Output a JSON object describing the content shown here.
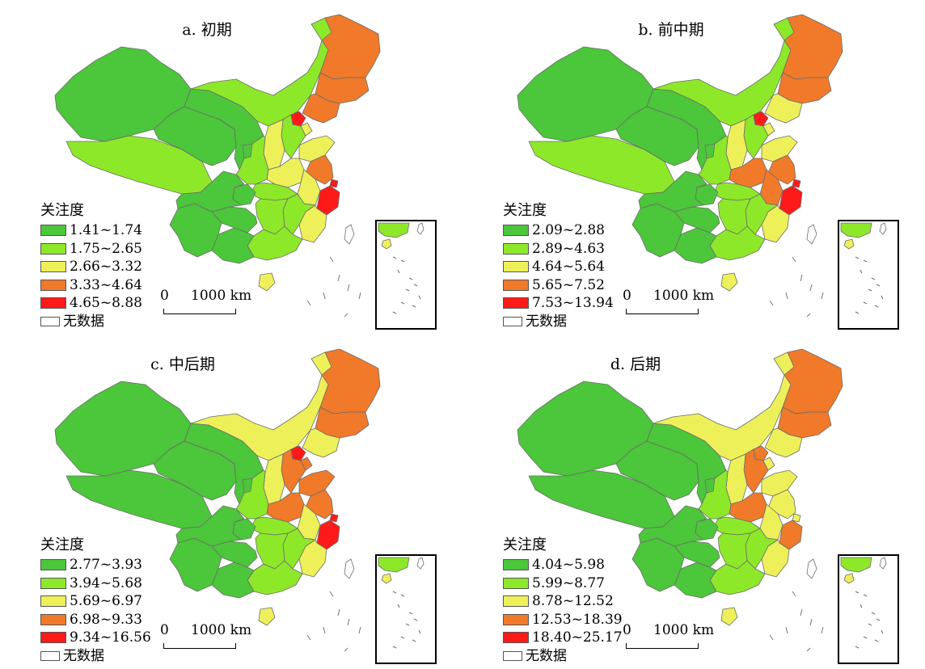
{
  "colors": {
    "c1": "#4cc63a",
    "c2": "#8ee82a",
    "c3": "#eef05a",
    "c4": "#f07a2a",
    "c5": "#ff1a1a",
    "nodata": "#ffffff"
  },
  "scale_bar": {
    "zero": "0",
    "distance": "1000 km"
  },
  "panels": [
    {
      "title": "a. 初期",
      "legend_title": "关注度",
      "legend": [
        "1.41~1.74",
        "1.75~2.65",
        "2.66~3.32",
        "3.33~4.64",
        "4.65~8.88",
        "无数据"
      ]
    },
    {
      "title": "b. 前中期",
      "legend_title": "关注度",
      "legend": [
        "2.09~2.88",
        "2.89~4.63",
        "4.64~5.64",
        "5.65~7.52",
        "7.53~13.94",
        "无数据"
      ]
    },
    {
      "title": "c. 中后期",
      "legend_title": "关注度",
      "legend": [
        "2.77~3.93",
        "3.94~5.68",
        "5.69~6.97",
        "6.98~9.33",
        "9.34~16.56",
        "无数据"
      ]
    },
    {
      "title": "d. 后期",
      "legend_title": "关注度",
      "legend": [
        "4.04~5.98",
        "5.99~8.77",
        "8.78~12.52",
        "12.53~18.39",
        "18.40~25.17",
        "无数据"
      ]
    }
  ],
  "map_classes": [
    {
      "xj": 1,
      "xz": 2,
      "qh": 1,
      "gs": 1,
      "nm": 2,
      "hlj": 4,
      "jl": 4,
      "ln": 4,
      "bj": 5,
      "tj": 3,
      "hb": 2,
      "sx": 3,
      "sd": 3,
      "hn": 3,
      "js": 4,
      "ah": 3,
      "zj": 5,
      "sh": 5,
      "fj": 3,
      "jx": 2,
      "hub": 2,
      "hun": 2,
      "gd": 2,
      "gx": 1,
      "yn": 1,
      "gz": 1,
      "sc": 1,
      "cq": 1,
      "sn": 2,
      "nx": 1,
      "hi": 3
    },
    {
      "xj": 1,
      "xz": 2,
      "qh": 1,
      "gs": 1,
      "nm": 2,
      "hlj": 4,
      "jl": 4,
      "ln": 3,
      "bj": 5,
      "tj": 3,
      "hb": 2,
      "sx": 3,
      "sd": 3,
      "hn": 4,
      "js": 4,
      "ah": 4,
      "zj": 5,
      "sh": 5,
      "fj": 3,
      "jx": 2,
      "hub": 2,
      "hun": 2,
      "gd": 2,
      "gx": 1,
      "yn": 1,
      "gz": 1,
      "sc": 1,
      "cq": 1,
      "sn": 2,
      "nx": 1,
      "hi": 3
    },
    {
      "xj": 1,
      "xz": 1,
      "qh": 1,
      "gs": 1,
      "nm": 3,
      "hlj": 4,
      "jl": 4,
      "ln": 3,
      "bj": 5,
      "tj": 4,
      "hb": 4,
      "sx": 3,
      "sd": 4,
      "hn": 4,
      "js": 4,
      "ah": 3,
      "zj": 5,
      "sh": 5,
      "fj": 3,
      "jx": 2,
      "hub": 2,
      "hun": 2,
      "gd": 2,
      "gx": 1,
      "yn": 1,
      "gz": 1,
      "sc": 1,
      "cq": 1,
      "sn": 2,
      "nx": 1,
      "hi": 3
    },
    {
      "xj": 1,
      "xz": 1,
      "qh": 1,
      "gs": 1,
      "nm": 3,
      "hlj": 4,
      "jl": 4,
      "ln": 3,
      "bj": 4,
      "tj": 3,
      "hb": 4,
      "sx": 3,
      "sd": 3,
      "hn": 4,
      "js": 3,
      "ah": 3,
      "zj": 4,
      "sh": 3,
      "fj": 3,
      "jx": 2,
      "hub": 2,
      "hun": 2,
      "gd": 2,
      "gx": 1,
      "yn": 1,
      "gz": 1,
      "sc": 1,
      "cq": 1,
      "sn": 2,
      "nx": 1,
      "hi": 3
    }
  ]
}
